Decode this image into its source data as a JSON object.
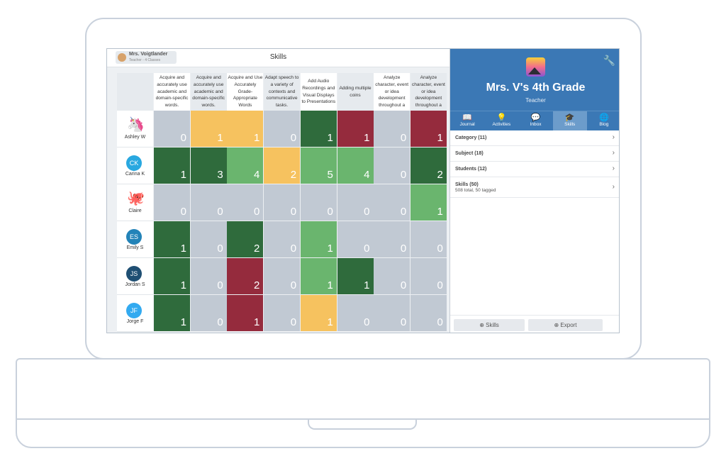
{
  "header": {
    "user_name": "Mrs. Voigtlander",
    "user_role": "Teacher - 4 Classes",
    "title": "Skills"
  },
  "colors": {
    "gray": "#c1c9d3",
    "yellow": "#f6c25f",
    "dark_green": "#2f6b3c",
    "light_green": "#6ab56e",
    "red": "#952b3d",
    "accent": "#3b78b5"
  },
  "skills": [
    "Acquire and accurately use academic and domain-specific words.",
    "Acquire and accurately use academic and domain-specific words.",
    "Acquire and Use Accurately Grade-Appropriate Words",
    "Adapt speech to a variety of contexts and communicative tasks.",
    "Add Audio Recordings and Visual Displays to Presentations",
    "Adding multiple coins",
    "Analyze character, event or idea development throughout a",
    "Analyze character, event or idea development throughout a"
  ],
  "students": [
    {
      "name": "Ashley W",
      "avatar": "unicorn-emoji",
      "initials": "",
      "avatar_color": "",
      "scores": [
        0,
        1,
        1,
        0,
        1,
        1,
        0,
        1
      ],
      "levels": [
        "gray",
        "yellow",
        "yellow",
        "gray",
        "dark_green",
        "red",
        "gray",
        "red"
      ]
    },
    {
      "name": "Carina K",
      "avatar": "initials",
      "initials": "CK",
      "avatar_color": "#29a8e0",
      "scores": [
        1,
        3,
        4,
        2,
        5,
        4,
        0,
        2
      ],
      "levels": [
        "dark_green",
        "dark_green",
        "light_green",
        "yellow",
        "light_green",
        "light_green",
        "gray",
        "dark_green"
      ]
    },
    {
      "name": "Claire",
      "avatar": "octopus-emoji",
      "initials": "",
      "avatar_color": "",
      "scores": [
        0,
        0,
        0,
        0,
        0,
        0,
        0,
        1
      ],
      "levels": [
        "gray",
        "gray",
        "gray",
        "gray",
        "gray",
        "gray",
        "gray",
        "light_green"
      ]
    },
    {
      "name": "Emily S",
      "avatar": "initials",
      "initials": "ES",
      "avatar_color": "#2383b8",
      "scores": [
        1,
        0,
        2,
        0,
        1,
        0,
        0,
        0
      ],
      "levels": [
        "dark_green",
        "gray",
        "dark_green",
        "gray",
        "light_green",
        "gray",
        "gray",
        "gray"
      ]
    },
    {
      "name": "Jordan S",
      "avatar": "initials",
      "initials": "JS",
      "avatar_color": "#1f4f73",
      "scores": [
        1,
        0,
        2,
        0,
        1,
        1,
        0,
        0
      ],
      "levels": [
        "dark_green",
        "gray",
        "red",
        "gray",
        "light_green",
        "dark_green",
        "gray",
        "gray"
      ]
    },
    {
      "name": "Jorge F",
      "avatar": "initials",
      "initials": "JF",
      "avatar_color": "#33aaf0",
      "scores": [
        1,
        0,
        1,
        0,
        1,
        0,
        0,
        0
      ],
      "levels": [
        "dark_green",
        "gray",
        "red",
        "gray",
        "yellow",
        "gray",
        "gray",
        "gray"
      ]
    }
  ],
  "panel": {
    "class_name": "Mrs. V's 4th Grade",
    "role": "Teacher",
    "tabs": [
      {
        "label": "Journal",
        "icon": "book-icon"
      },
      {
        "label": "Activities",
        "icon": "lightbulb-icon"
      },
      {
        "label": "Inbox",
        "icon": "chat-icon"
      },
      {
        "label": "Skills",
        "icon": "graduation-cap-icon",
        "active": true
      },
      {
        "label": "Blog",
        "icon": "globe-icon"
      }
    ],
    "filters": [
      {
        "label": "Category (11)",
        "sub": ""
      },
      {
        "label": "Subject (18)",
        "sub": ""
      },
      {
        "label": "Students (12)",
        "sub": ""
      },
      {
        "label": "Skills (50)",
        "sub": "508 total, 50 tagged"
      }
    ],
    "add_skills_label": "Skills",
    "export_label": "Export"
  }
}
